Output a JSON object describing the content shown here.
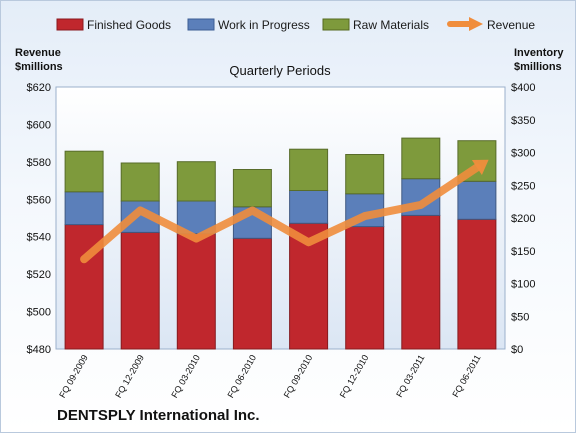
{
  "company_name": "DENTSPLY International Inc.",
  "chart_data": {
    "type": "bar",
    "subtype": "stacked bar with line overlay",
    "title": "Quarterly Periods",
    "y_left_label": [
      "Revenue",
      "$millions"
    ],
    "y_right_label": [
      "Inventory",
      "$millions"
    ],
    "y_left_ticks": [
      "$480",
      "$500",
      "$520",
      "$540",
      "$560",
      "$580",
      "$600",
      "$620"
    ],
    "y_right_ticks": [
      "$0",
      "$50",
      "$100",
      "$150",
      "$200",
      "$250",
      "$300",
      "$350",
      "$400"
    ],
    "y_left_range": [
      480,
      620
    ],
    "y_right_range": [
      0,
      400
    ],
    "categories": [
      "FQ 09-2009",
      "FQ 12-2009",
      "FQ 03-2010",
      "FQ 06-2010",
      "FQ 09-2010",
      "FQ 12-2010",
      "FQ 03-2011",
      "FQ 06-2011"
    ],
    "stacked_series_axis": "right",
    "series": [
      {
        "name": "Finished Goods",
        "axis": "right",
        "color": "#c0272d",
        "values": [
          190,
          178,
          176,
          169,
          192,
          187,
          204,
          198
        ]
      },
      {
        "name": "Work in Progress",
        "axis": "right",
        "color": "#5b7fba",
        "values": [
          50,
          48,
          50,
          48,
          50,
          50,
          56,
          58
        ]
      },
      {
        "name": "Raw Materials",
        "axis": "right",
        "color": "#7e9a3c",
        "values": [
          62,
          58,
          60,
          57,
          63,
          60,
          62,
          62
        ]
      },
      {
        "name": "Revenue",
        "type": "line",
        "axis": "left",
        "color": "#f08d3c",
        "values": [
          528,
          554,
          539,
          554,
          537,
          551,
          557,
          577
        ]
      }
    ],
    "legend_position": "top",
    "grid": false
  }
}
